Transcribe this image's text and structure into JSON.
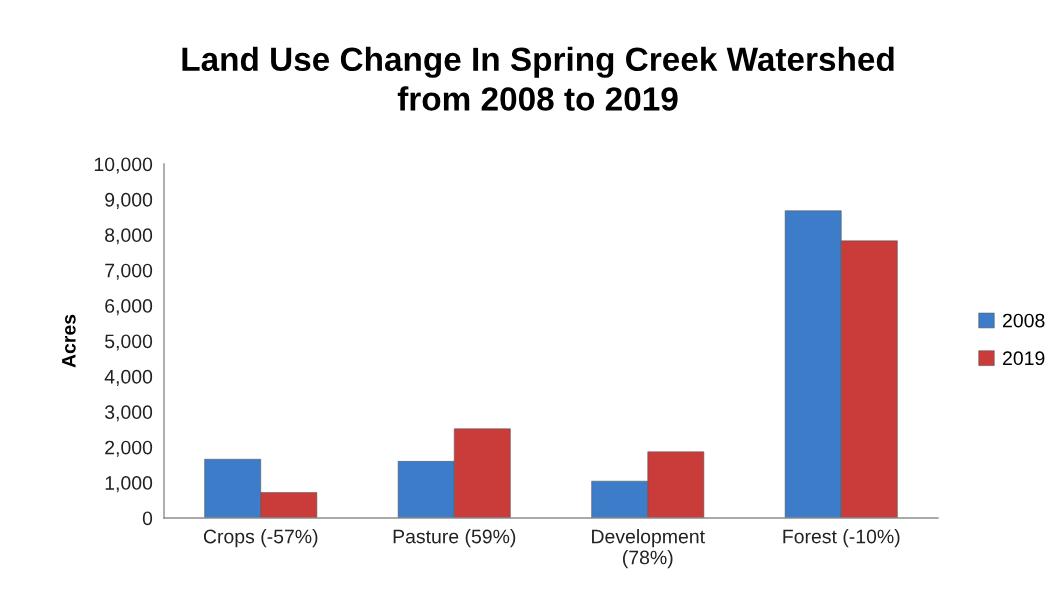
{
  "chart_data": {
    "type": "bar",
    "title": "Land Use Change In Spring Creek Watershed\nfrom 2008 to 2019",
    "ylabel": "Acres",
    "categories": [
      "Crops (-57%)",
      "Pasture (59%)",
      "Development\n(78%)",
      "Forest (-10%)"
    ],
    "series": [
      {
        "name": "2008",
        "color": "#3d7cc9",
        "values": [
          1660,
          1600,
          1040,
          8680
        ]
      },
      {
        "name": "2019",
        "color": "#c93c3a",
        "values": [
          720,
          2520,
          1870,
          7830
        ]
      }
    ],
    "ylim": [
      0,
      10000
    ],
    "yticks": [
      {
        "value": 0,
        "label": "0"
      },
      {
        "value": 1000,
        "label": "1,000"
      },
      {
        "value": 2000,
        "label": "2,000"
      },
      {
        "value": 3000,
        "label": "3,000"
      },
      {
        "value": 4000,
        "label": "4,000"
      },
      {
        "value": 5000,
        "label": "5,000"
      },
      {
        "value": 6000,
        "label": "6,000"
      },
      {
        "value": 7000,
        "label": "7,000"
      },
      {
        "value": 8000,
        "label": "8,000"
      },
      {
        "value": 9000,
        "label": "9,000"
      },
      {
        "value": 10000,
        "label": "10,000"
      }
    ],
    "grid": false,
    "legend": "right"
  }
}
